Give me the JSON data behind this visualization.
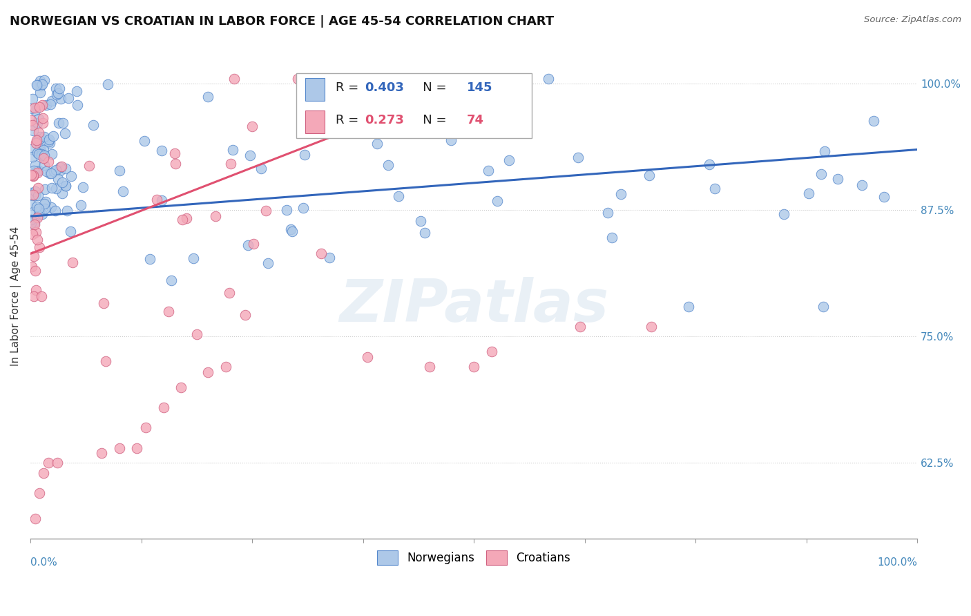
{
  "title": "NORWEGIAN VS CROATIAN IN LABOR FORCE | AGE 45-54 CORRELATION CHART",
  "source_text": "Source: ZipAtlas.com",
  "ylabel": "In Labor Force | Age 45-54",
  "xlim": [
    0.0,
    1.0
  ],
  "ylim": [
    0.55,
    1.03
  ],
  "yticks": [
    0.625,
    0.75,
    0.875,
    1.0
  ],
  "ytick_labels": [
    "62.5%",
    "75.0%",
    "87.5%",
    "100.0%"
  ],
  "norwegian_color": "#adc8e8",
  "norwegian_edge_color": "#5588cc",
  "croatian_color": "#f4a8b8",
  "croatian_edge_color": "#d06080",
  "norwegian_line_color": "#3366bb",
  "croatian_line_color": "#e05070",
  "norwegian_R": 0.403,
  "norwegian_N": 145,
  "croatian_R": 0.273,
  "croatian_N": 74,
  "background_color": "#ffffff",
  "grid_color": "#cccccc",
  "watermark": "ZIPatlas",
  "title_fontsize": 13,
  "axis_label_fontsize": 11,
  "tick_fontsize": 11,
  "annotation_fontsize": 13,
  "right_tick_color": "#4488bb",
  "nor_line_x0": 0.0,
  "nor_line_y0": 0.869,
  "nor_line_x1": 1.0,
  "nor_line_y1": 0.935,
  "cro_line_x0": 0.0,
  "cro_line_y0": 0.832,
  "cro_line_x1": 0.42,
  "cro_line_y1": 0.975
}
